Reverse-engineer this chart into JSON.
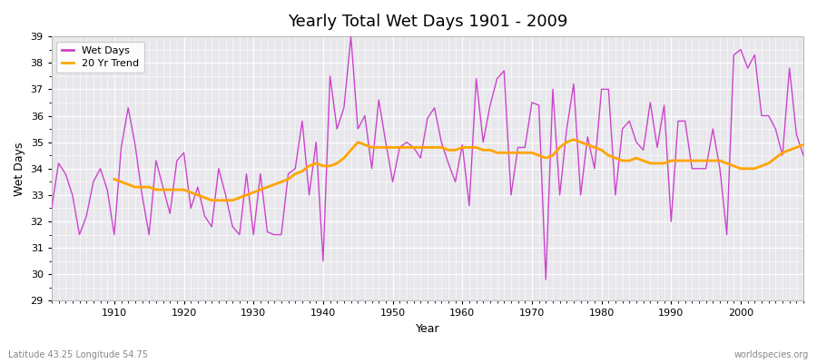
{
  "title": "Yearly Total Wet Days 1901 - 2009",
  "xlabel": "Year",
  "ylabel": "Wet Days",
  "subtitle": "Latitude 43.25 Longitude 54.75",
  "watermark": "worldspecies.org",
  "ylim": [
    29,
    39
  ],
  "xlim": [
    1901,
    2009
  ],
  "yticks": [
    29,
    30,
    31,
    32,
    33,
    34,
    35,
    36,
    37,
    38,
    39
  ],
  "xticks": [
    1910,
    1920,
    1930,
    1940,
    1950,
    1960,
    1970,
    1980,
    1990,
    2000
  ],
  "wet_days_color": "#CC44CC",
  "trend_color": "#FFA500",
  "fig_bg_color": "#ffffff",
  "plot_bg_color": "#E8E8EC",
  "legend_labels": [
    "Wet Days",
    "20 Yr Trend"
  ],
  "years": [
    1901,
    1902,
    1903,
    1904,
    1905,
    1906,
    1907,
    1908,
    1909,
    1910,
    1911,
    1912,
    1913,
    1914,
    1915,
    1916,
    1917,
    1918,
    1919,
    1920,
    1921,
    1922,
    1923,
    1924,
    1925,
    1926,
    1927,
    1928,
    1929,
    1930,
    1931,
    1932,
    1933,
    1934,
    1935,
    1936,
    1937,
    1938,
    1939,
    1940,
    1941,
    1942,
    1943,
    1944,
    1945,
    1946,
    1947,
    1948,
    1949,
    1950,
    1951,
    1952,
    1953,
    1954,
    1955,
    1956,
    1957,
    1958,
    1959,
    1960,
    1961,
    1962,
    1963,
    1964,
    1965,
    1966,
    1967,
    1968,
    1969,
    1970,
    1971,
    1972,
    1973,
    1974,
    1975,
    1976,
    1977,
    1978,
    1979,
    1980,
    1981,
    1982,
    1983,
    1984,
    1985,
    1986,
    1987,
    1988,
    1989,
    1990,
    1991,
    1992,
    1993,
    1994,
    1995,
    1996,
    1997,
    1998,
    1999,
    2000,
    2001,
    2002,
    2003,
    2004,
    2005,
    2006,
    2007,
    2008,
    2009
  ],
  "wet_days": [
    32.5,
    34.2,
    33.8,
    33.0,
    31.5,
    32.2,
    33.5,
    34.0,
    33.2,
    31.5,
    34.8,
    36.3,
    34.9,
    33.0,
    31.5,
    34.3,
    33.3,
    32.3,
    34.3,
    34.6,
    32.5,
    33.3,
    32.2,
    31.8,
    34.0,
    33.0,
    31.8,
    31.5,
    33.8,
    31.5,
    33.8,
    31.6,
    31.5,
    31.5,
    33.8,
    34.0,
    35.8,
    33.0,
    35.0,
    30.5,
    37.5,
    35.5,
    36.3,
    39.0,
    35.5,
    36.0,
    34.0,
    36.6,
    35.0,
    33.5,
    34.8,
    35.0,
    34.8,
    34.4,
    35.9,
    36.3,
    35.0,
    34.2,
    33.5,
    34.9,
    32.6,
    37.4,
    35.0,
    36.4,
    37.4,
    37.7,
    33.0,
    34.8,
    34.8,
    36.5,
    36.4,
    29.8,
    37.0,
    33.0,
    35.5,
    37.2,
    33.0,
    35.2,
    34.0,
    37.0,
    37.0,
    33.0,
    35.5,
    35.8,
    35.0,
    34.7,
    36.5,
    34.8,
    36.4,
    32.0,
    35.8,
    35.8,
    34.0,
    34.0,
    34.0,
    35.5,
    34.0,
    31.5,
    38.3,
    38.5,
    37.8,
    38.3,
    36.0,
    36.0,
    35.5,
    34.5,
    37.8,
    35.3,
    34.5
  ],
  "trend_years": [
    1910,
    1911,
    1912,
    1913,
    1914,
    1915,
    1916,
    1917,
    1918,
    1919,
    1920,
    1921,
    1922,
    1923,
    1924,
    1925,
    1926,
    1927,
    1928,
    1929,
    1930,
    1931,
    1932,
    1933,
    1934,
    1935,
    1936,
    1937,
    1938,
    1939,
    1940,
    1941,
    1942,
    1943,
    1944,
    1945,
    1946,
    1947,
    1948,
    1949,
    1950,
    1951,
    1952,
    1953,
    1954,
    1955,
    1956,
    1957,
    1958,
    1959,
    1960,
    1961,
    1962,
    1963,
    1964,
    1965,
    1966,
    1967,
    1968,
    1969,
    1970,
    1971,
    1972,
    1973,
    1974,
    1975,
    1976,
    1977,
    1978,
    1979,
    1980,
    1981,
    1982,
    1983,
    1984,
    1985,
    1986,
    1987,
    1988,
    1989,
    1990,
    1991,
    1992,
    1993,
    1994,
    1995,
    1996,
    1997,
    1998,
    1999,
    2000,
    2001,
    2002,
    2003,
    2004,
    2005,
    2006,
    2007,
    2008,
    2009
  ],
  "trend_values": [
    33.6,
    33.5,
    33.4,
    33.3,
    33.3,
    33.3,
    33.2,
    33.2,
    33.2,
    33.2,
    33.2,
    33.1,
    33.0,
    32.9,
    32.8,
    32.8,
    32.8,
    32.8,
    32.9,
    33.0,
    33.1,
    33.2,
    33.3,
    33.4,
    33.5,
    33.6,
    33.8,
    33.9,
    34.1,
    34.2,
    34.1,
    34.1,
    34.2,
    34.4,
    34.7,
    35.0,
    34.9,
    34.8,
    34.8,
    34.8,
    34.8,
    34.8,
    34.8,
    34.8,
    34.8,
    34.8,
    34.8,
    34.8,
    34.7,
    34.7,
    34.8,
    34.8,
    34.8,
    34.7,
    34.7,
    34.6,
    34.6,
    34.6,
    34.6,
    34.6,
    34.6,
    34.5,
    34.4,
    34.5,
    34.8,
    35.0,
    35.1,
    35.0,
    34.9,
    34.8,
    34.7,
    34.5,
    34.4,
    34.3,
    34.3,
    34.4,
    34.3,
    34.2,
    34.2,
    34.2,
    34.3,
    34.3,
    34.3,
    34.3,
    34.3,
    34.3,
    34.3,
    34.3,
    34.2,
    34.1,
    34.0,
    34.0,
    34.0,
    34.1,
    34.2,
    34.4,
    34.6,
    34.7,
    34.8,
    34.9
  ]
}
